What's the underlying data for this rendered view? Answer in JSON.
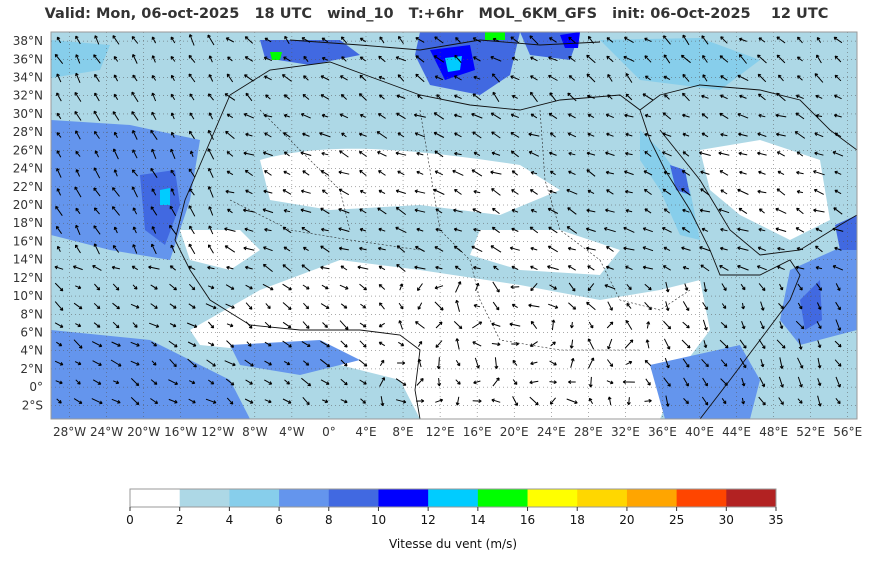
{
  "title": "Valid: Mon, 06-oct-2025   18 UTC   wind_10   T:+6hr   MOL_6KM_GFS   init: 06-Oct-2025    12 UTC",
  "map": {
    "lat_labels": [
      "38°N",
      "36°N",
      "34°N",
      "32°N",
      "30°N",
      "28°N",
      "26°N",
      "24°N",
      "22°N",
      "20°N",
      "18°N",
      "16°N",
      "14°N",
      "12°N",
      "10°N",
      "8°N",
      "6°N",
      "4°N",
      "2°N",
      "0°",
      "2°S"
    ],
    "lon_labels": [
      "28°W",
      "24°W",
      "20°W",
      "16°W",
      "12°W",
      "8°W",
      "4°W",
      "0°",
      "4°E",
      "8°E",
      "12°E",
      "16°E",
      "20°E",
      "24°E",
      "28°E",
      "32°E",
      "36°E",
      "40°E",
      "44°E",
      "48°E",
      "52°E",
      "56°E"
    ],
    "lat_range": [
      -3.5,
      39.0
    ],
    "lon_range": [
      -30.0,
      57.0
    ]
  },
  "legend": {
    "ticks": [
      "0",
      "2",
      "4",
      "6",
      "8",
      "10",
      "12",
      "14",
      "16",
      "18",
      "20",
      "25",
      "30",
      "35"
    ],
    "colors": [
      "#ffffff",
      "#add8e6",
      "#87ceeb",
      "#6495ed",
      "#4169e1",
      "#0000ff",
      "#00ccff",
      "#00ff00",
      "#ffff00",
      "#ffd700",
      "#ffa500",
      "#ff4500",
      "#b22222"
    ],
    "label": "Vitesse du vent (m/s)"
  }
}
